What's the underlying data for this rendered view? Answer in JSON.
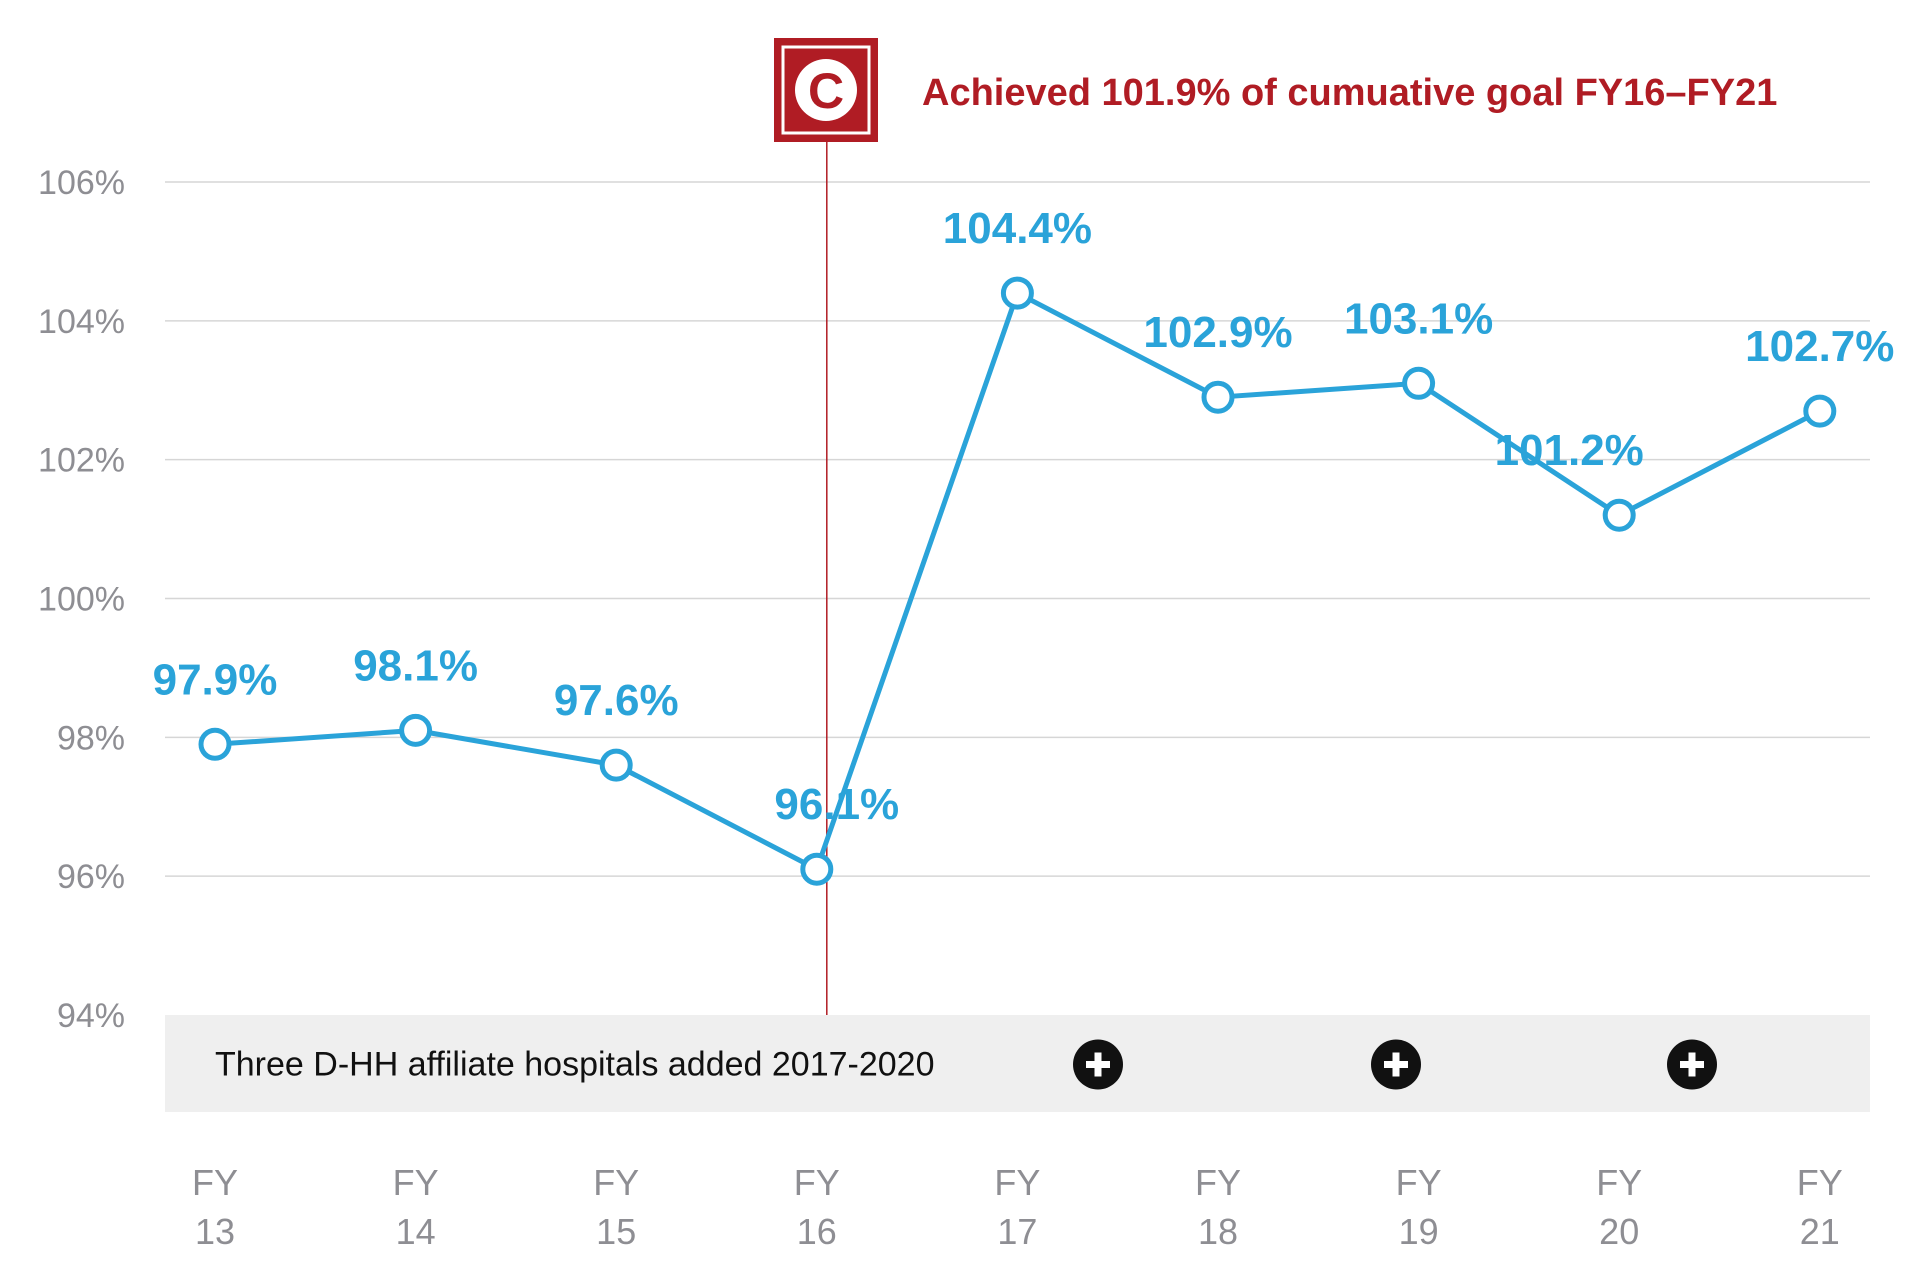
{
  "chart_data": {
    "type": "line",
    "categories": [
      "FY 13",
      "FY 14",
      "FY 15",
      "FY 16",
      "FY 17",
      "FY 18",
      "FY 19",
      "FY 20",
      "FY 21"
    ],
    "x_tick_lines": [
      [
        "FY",
        "13"
      ],
      [
        "FY",
        "14"
      ],
      [
        "FY",
        "15"
      ],
      [
        "FY",
        "16"
      ],
      [
        "FY",
        "17"
      ],
      [
        "FY",
        "18"
      ],
      [
        "FY",
        "19"
      ],
      [
        "FY",
        "20"
      ],
      [
        "FY",
        "21"
      ]
    ],
    "values": [
      97.9,
      98.1,
      97.6,
      96.1,
      104.4,
      102.9,
      103.1,
      101.2,
      102.7
    ],
    "data_labels": [
      "97.9%",
      "98.1%",
      "97.6%",
      "96.1%",
      "104.4%",
      "102.9%",
      "103.1%",
      "101.2%",
      "102.7%"
    ],
    "y_ticks": [
      94,
      96,
      98,
      100,
      102,
      104,
      106
    ],
    "y_tick_labels": [
      "94%",
      "96%",
      "98%",
      "100%",
      "102%",
      "104%",
      "106%"
    ],
    "ylim": [
      94,
      106
    ],
    "grid": true,
    "series_color": "#2aa3d9",
    "annotation": {
      "text": "Achieved 101.9% of cumuative goal FY16–FY21",
      "at_category": "FY 16",
      "marker_letter": "C",
      "color": "#b01c24"
    },
    "band": {
      "text": "Three D-HH affiliate hospitals added 2017-2020",
      "plus_icon_at": [
        "FY 17",
        "FY 19",
        "FY 20"
      ],
      "icon_name": "plus-circle-icon"
    }
  }
}
